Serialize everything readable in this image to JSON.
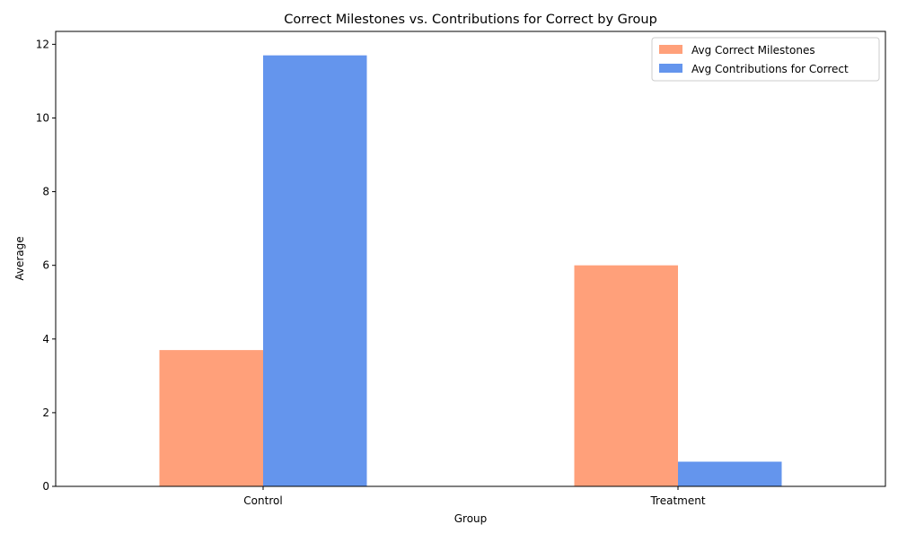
{
  "chart_data": {
    "type": "bar",
    "title": "Correct Milestones vs. Contributions for Correct by Group",
    "xlabel": "Group",
    "ylabel": "Average",
    "categories": [
      "Control",
      "Treatment"
    ],
    "series": [
      {
        "name": "Avg Correct Milestones",
        "color": "#ffa07a",
        "values": [
          3.7,
          6.0
        ]
      },
      {
        "name": "Avg Contributions for Correct",
        "color": "#6495ed",
        "values": [
          11.7,
          0.67
        ]
      }
    ],
    "ylim": [
      0,
      12.35
    ],
    "yticks": [
      0,
      2,
      4,
      6,
      8,
      10,
      12
    ],
    "grid": false,
    "legend_position": "top-right"
  }
}
